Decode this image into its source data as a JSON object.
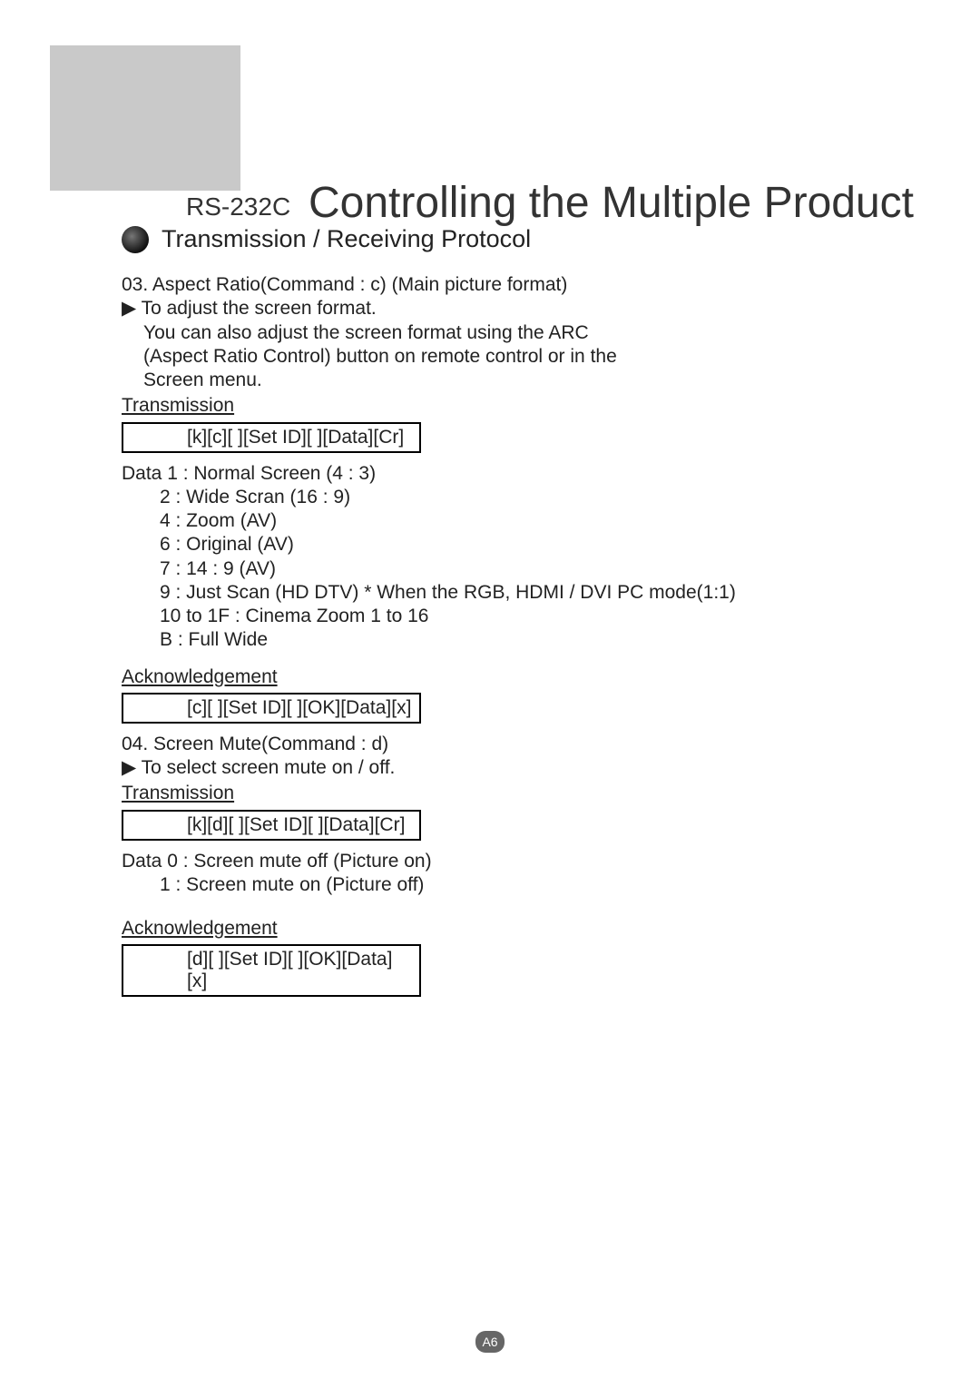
{
  "header": {
    "label": "RS-232C",
    "title": "Controlling the Multiple Product"
  },
  "section": {
    "title": "Transmission / Receiving Protocol"
  },
  "cmd03": {
    "heading": "03. Aspect Ratio(Command : c) (Main picture format)",
    "arrow_line": "▶  To adjust the screen format.",
    "desc1": "You can also adjust the screen format using the ARC",
    "desc2": "(Aspect Ratio Control) button on remote control or in the",
    "desc3": "Screen menu.",
    "transmission_label": "Transmission",
    "transmission_cmd": "[k][c][ ][Set ID][ ][Data][Cr]",
    "data_lead": "Data 1 : Normal Screen (4 : 3)",
    "d2": "2 : Wide Scran (16 : 9)",
    "d4": "4 : Zoom (AV)",
    "d6": "6 : Original (AV)",
    "d7": "7 : 14 : 9 (AV)",
    "d9": "9 : Just Scan (HD DTV)   * When the RGB, HDMI / DVI PC mode(1:1)",
    "d10": "10 to 1F : Cinema Zoom 1 to 16",
    "dB": "B : Full Wide",
    "ack_label": "Acknowledgement",
    "ack_cmd": "[c][ ][Set ID][ ][OK][Data][x]"
  },
  "cmd04": {
    "heading": "04. Screen Mute(Command : d)",
    "arrow_line": "▶   To select screen mute on / off.",
    "transmission_label": "Transmission",
    "transmission_cmd": "[k][d][ ][Set ID][ ][Data][Cr]",
    "data_lead": "Data 0 : Screen mute off (Picture on)",
    "d1": "1 : Screen mute on (Picture off)",
    "ack_label": "Acknowledgement",
    "ack_cmd": "[d][ ][Set ID][ ][OK][Data][x]"
  },
  "page_number": "A6",
  "colors": {
    "gray_block": "#c9c9c9",
    "text": "#222222",
    "page_bg": "#ffffff",
    "badge_bg": "#666666"
  }
}
